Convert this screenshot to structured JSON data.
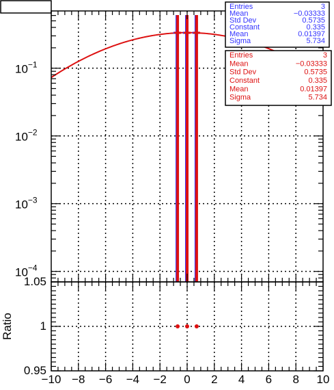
{
  "chart_data": [
    {
      "type": "line",
      "panel": "upper",
      "title_box": "",
      "xlabel": "",
      "ylabel": "",
      "xlim": [
        -10,
        10
      ],
      "ylim": [
        7e-05,
        0.7
      ],
      "y_scale": "log",
      "grid": true,
      "x_ticks": [
        "−10",
        "−8",
        "−6",
        "−4",
        "−2",
        "0",
        "2",
        "4",
        "6",
        "8",
        "10"
      ],
      "y_ticks": [
        {
          "base": "10",
          "exp": "−1",
          "value": 0.1
        },
        {
          "base": "10",
          "exp": "−2",
          "value": 0.01
        },
        {
          "base": "10",
          "exp": "−3",
          "value": 0.001
        },
        {
          "base": "10",
          "exp": "−4",
          "value": 0.0001
        }
      ],
      "series": [
        {
          "color": "#3333ff",
          "kind": "histogram",
          "x": [
            -0.7,
            0.0,
            0.7
          ],
          "values": [
            0.333,
            0.333,
            0.333
          ],
          "errors": [
            0.333,
            0.333,
            0.333
          ]
        },
        {
          "color": "#dd1111",
          "kind": "histogram",
          "x": [
            -0.7,
            0.0,
            0.7
          ],
          "values": [
            0.333,
            0.333,
            0.333
          ],
          "errors": [
            0.333,
            0.333,
            0.333
          ]
        },
        {
          "color": "#dd1111",
          "kind": "gaussian-fit",
          "constant": 0.335,
          "mean": 0.01397,
          "sigma": 5.734
        }
      ],
      "stat_boxes": [
        {
          "color": "#3333ff",
          "rows": [
            {
              "label": "Entries",
              "value": "3"
            },
            {
              "label": "Mean",
              "value": "−0.03333"
            },
            {
              "label": "Std Dev",
              "value": "0.5735"
            },
            {
              "label": "Constant",
              "value": "0.335"
            },
            {
              "label": "Mean",
              "value": "0.01397"
            },
            {
              "label": "Sigma",
              "value": "5.734"
            }
          ]
        },
        {
          "color": "#dd1111",
          "rows": [
            {
              "label": "Entries",
              "value": "3"
            },
            {
              "label": "Mean",
              "value": "−0.03333"
            },
            {
              "label": "Std Dev",
              "value": "0.5735"
            },
            {
              "label": "Constant",
              "value": "0.335"
            },
            {
              "label": "Mean",
              "value": "0.01397"
            },
            {
              "label": "Sigma",
              "value": "5.734"
            }
          ]
        }
      ]
    },
    {
      "type": "scatter",
      "panel": "lower",
      "ylabel": "Ratio",
      "xlim": [
        -10,
        10
      ],
      "ylim": [
        0.95,
        1.05
      ],
      "grid": true,
      "x_ticks": [
        "−10",
        "−8",
        "−6",
        "−4",
        "−2",
        "0",
        "2",
        "4",
        "6",
        "8",
        "10"
      ],
      "y_ticks": [
        "0.95",
        "1",
        "1.05"
      ],
      "series": [
        {
          "color": "#dd1111",
          "x": [
            -0.7,
            0.0,
            0.7
          ],
          "values": [
            1,
            1,
            1
          ]
        }
      ]
    }
  ]
}
